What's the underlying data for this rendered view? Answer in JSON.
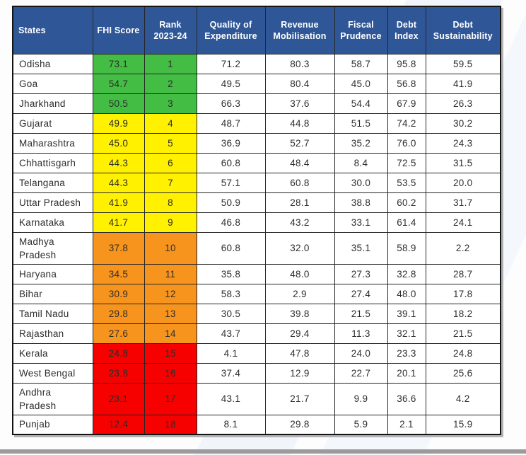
{
  "colors": {
    "header_bg": "#2F5797",
    "header_text": "#FFFFFF",
    "grid_border": "#262626",
    "bottom_bar": "#9B9B9B",
    "bands": {
      "green": "#43BD43",
      "yellow": "#FFF100",
      "orange": "#F7941D",
      "red": "#F60000"
    }
  },
  "chart_data": {
    "type": "table",
    "title": "",
    "legend_note": "FHI Score and Rank cells are color banded: green (ranks 1-3), yellow (ranks 4-9), orange (ranks 10-14), red (ranks 15-18)",
    "columns": [
      {
        "key": "state",
        "label": "States"
      },
      {
        "key": "fhi",
        "label": "FHI Score"
      },
      {
        "key": "rank",
        "label": "Rank\n2023-24"
      },
      {
        "key": "qoe",
        "label": "Quality of\nExpenditure"
      },
      {
        "key": "rm",
        "label": "Revenue\nMobilisation"
      },
      {
        "key": "fp",
        "label": "Fiscal\nPrudence"
      },
      {
        "key": "di",
        "label": "Debt\nIndex"
      },
      {
        "key": "ds",
        "label": "Debt\nSustainability"
      }
    ],
    "rows": [
      {
        "state": "Odisha",
        "fhi": "73.1",
        "rank": "1",
        "qoe": "71.2",
        "rm": "80.3",
        "fp": "58.7",
        "di": "95.8",
        "ds": "59.5",
        "band": "green"
      },
      {
        "state": "Goa",
        "fhi": "54.7",
        "rank": "2",
        "qoe": "49.5",
        "rm": "80.4",
        "fp": "45.0",
        "di": "56.8",
        "ds": "41.9",
        "band": "green"
      },
      {
        "state": "Jharkhand",
        "fhi": "50.5",
        "rank": "3",
        "qoe": "66.3",
        "rm": "37.6",
        "fp": "54.4",
        "di": "67.9",
        "ds": "26.3",
        "band": "green"
      },
      {
        "state": "Gujarat",
        "fhi": "49.9",
        "rank": "4",
        "qoe": "48.7",
        "rm": "44.8",
        "fp": "51.5",
        "di": "74.2",
        "ds": "30.2",
        "band": "yellow"
      },
      {
        "state": "Maharashtra",
        "fhi": "45.0",
        "rank": "5",
        "qoe": "36.9",
        "rm": "52.7",
        "fp": "35.2",
        "di": "76.0",
        "ds": "24.3",
        "band": "yellow"
      },
      {
        "state": "Chhattisgarh",
        "fhi": "44.3",
        "rank": "6",
        "qoe": "60.8",
        "rm": "48.4",
        "fp": "8.4",
        "di": "72.5",
        "ds": "31.5",
        "band": "yellow"
      },
      {
        "state": "Telangana",
        "fhi": "44.3",
        "rank": "7",
        "qoe": "57.1",
        "rm": "60.8",
        "fp": "30.0",
        "di": "53.5",
        "ds": "20.0",
        "band": "yellow"
      },
      {
        "state": "Uttar Pradesh",
        "fhi": "41.9",
        "rank": "8",
        "qoe": "50.9",
        "rm": "28.1",
        "fp": "38.8",
        "di": "60.2",
        "ds": "31.7",
        "band": "yellow"
      },
      {
        "state": "Karnataka",
        "fhi": "41.7",
        "rank": "9",
        "qoe": "46.8",
        "rm": "43.2",
        "fp": "33.1",
        "di": "61.4",
        "ds": "24.1",
        "band": "yellow"
      },
      {
        "state": "Madhya Pradesh",
        "fhi": "37.8",
        "rank": "10",
        "qoe": "60.8",
        "rm": "32.0",
        "fp": "35.1",
        "di": "58.9",
        "ds": "2.2",
        "band": "orange"
      },
      {
        "state": "Haryana",
        "fhi": "34.5",
        "rank": "11",
        "qoe": "35.8",
        "rm": "48.0",
        "fp": "27.3",
        "di": "32.8",
        "ds": "28.7",
        "band": "orange"
      },
      {
        "state": "Bihar",
        "fhi": "30.9",
        "rank": "12",
        "qoe": "58.3",
        "rm": "2.9",
        "fp": "27.4",
        "di": "48.0",
        "ds": "17.8",
        "band": "orange"
      },
      {
        "state": "Tamil Nadu",
        "fhi": "29.8",
        "rank": "13",
        "qoe": "30.5",
        "rm": "39.8",
        "fp": "21.5",
        "di": "39.1",
        "ds": "18.2",
        "band": "orange"
      },
      {
        "state": "Rajasthan",
        "fhi": "27.6",
        "rank": "14",
        "qoe": "43.7",
        "rm": "29.4",
        "fp": "11.3",
        "di": "32.1",
        "ds": "21.5",
        "band": "orange"
      },
      {
        "state": "Kerala",
        "fhi": "24.8",
        "rank": "15",
        "qoe": "4.1",
        "rm": "47.8",
        "fp": "24.0",
        "di": "23.3",
        "ds": "24.8",
        "band": "red"
      },
      {
        "state": "West Bengal",
        "fhi": "23.8",
        "rank": "16",
        "qoe": "37.4",
        "rm": "12.9",
        "fp": "22.7",
        "di": "20.1",
        "ds": "25.6",
        "band": "red"
      },
      {
        "state": "Andhra Pradesh",
        "fhi": "23.1",
        "rank": "17",
        "qoe": "43.1",
        "rm": "21.7",
        "fp": "9.9",
        "di": "36.6",
        "ds": "4.2",
        "band": "red"
      },
      {
        "state": "Punjab",
        "fhi": "12.4",
        "rank": "18",
        "qoe": "8.1",
        "rm": "29.8",
        "fp": "5.9",
        "di": "2.1",
        "ds": "15.9",
        "band": "red"
      }
    ]
  }
}
